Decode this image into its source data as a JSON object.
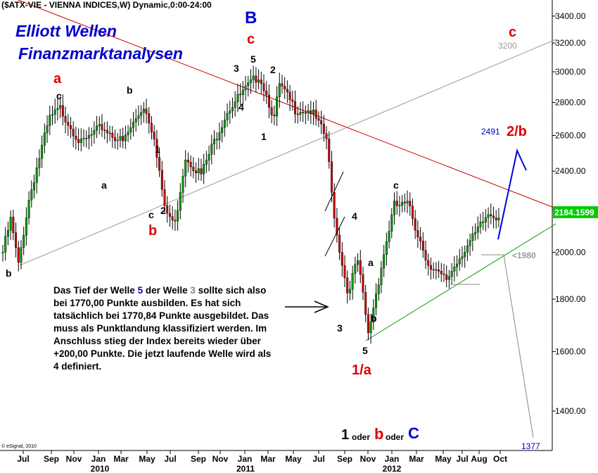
{
  "chart_data": {
    "type": "candlestick",
    "title": "($ATX-VIE - VIENNA INDICES,W) Dynamic,0:00-24:00",
    "watermark": "© eSignal, 2010",
    "y_axis": {
      "scale": "log",
      "ticks": [
        1400,
        1600,
        1800,
        2000,
        2200,
        2400,
        2600,
        2800,
        3000,
        3200,
        3400
      ],
      "labels": [
        "1400.00",
        "1600.00",
        "1800.00",
        "2000.00",
        "2200.00",
        "2400.00",
        "2600.00",
        "2800.00",
        "3000.00",
        "3200.00",
        "3400.00"
      ],
      "position": "right"
    },
    "x_axis": {
      "months": [
        "Jul",
        "Sep",
        "Nov",
        "Jan",
        "Mar",
        "May",
        "Jul",
        "Sep",
        "Nov",
        "Jan",
        "Mar",
        "May",
        "Jul",
        "Sep",
        "Nov",
        "Jan",
        "Mar",
        "May",
        "Jul",
        "Aug",
        "Oct"
      ],
      "years": [
        "2010",
        "2011",
        "2012"
      ]
    },
    "last_price": "2184.1599",
    "ohlc_anchors": [
      [
        0,
        2000
      ],
      [
        3,
        2150
      ],
      [
        6,
        1940
      ],
      [
        10,
        2250
      ],
      [
        18,
        2700
      ],
      [
        22,
        2760
      ],
      [
        30,
        2550
      ],
      [
        38,
        2650
      ],
      [
        46,
        2560
      ],
      [
        54,
        2780
      ],
      [
        58,
        2600
      ],
      [
        62,
        2200
      ],
      [
        66,
        2130
      ],
      [
        70,
        2480
      ],
      [
        76,
        2380
      ],
      [
        86,
        2750
      ],
      [
        94,
        2900
      ],
      [
        98,
        2980
      ],
      [
        100,
        2900
      ],
      [
        104,
        2700
      ],
      [
        106,
        2910
      ],
      [
        112,
        2760
      ],
      [
        118,
        2750
      ],
      [
        124,
        2580
      ],
      [
        126,
        2280
      ],
      [
        128,
        2080
      ],
      [
        132,
        1830
      ],
      [
        136,
        1960
      ],
      [
        140,
        1660
      ],
      [
        144,
        1880
      ],
      [
        150,
        2220
      ],
      [
        156,
        2220
      ],
      [
        158,
        2120
      ],
      [
        164,
        1920
      ],
      [
        170,
        1880
      ],
      [
        176,
        2000
      ],
      [
        180,
        2060
      ],
      [
        186,
        2180
      ],
      [
        190,
        2170
      ]
    ],
    "trendlines": [
      {
        "name": "red resistance",
        "color": "#cc0000"
      },
      {
        "name": "gray support",
        "color": "#999999"
      },
      {
        "name": "green support",
        "color": "#009900"
      }
    ],
    "levels": {
      "upper": "3200",
      "target": "2491",
      "lower": "<1980",
      "bottom": "1377"
    },
    "wave_labels": {
      "a": "a",
      "b": "b",
      "c": "c",
      "B": "B",
      "one_a": "1/a",
      "two_b": "2/b",
      "n1": "1",
      "n2": "2",
      "n3": "3",
      "n4": "4",
      "n5": "5",
      "oder": "oder"
    }
  },
  "brand": {
    "line1": "Elliott Wellen",
    "line2": "Finanzmarktanalysen"
  },
  "note": {
    "p1": "Das Tief der Welle ",
    "wave5": "5",
    "p2": " der Welle ",
    "wave3": "3",
    "p3": " sollte sich also bei 1770,00 Punkte ausbilden. Es hat sich tatsächlich bei 1770,84 Punkte ausgebildet. Das muss als Punktlandung klassifiziert werden. Im Anschluss stieg der Index bereits wieder über +200,00 Punkte. Die jetzt laufende Welle wird als 4 definiert."
  },
  "colors": {
    "up": "#009900",
    "down": "#cc0000",
    "brand": "#0000cc",
    "red": "#dd0000",
    "blue": "#0000dd",
    "price_box": "#00cc00"
  }
}
